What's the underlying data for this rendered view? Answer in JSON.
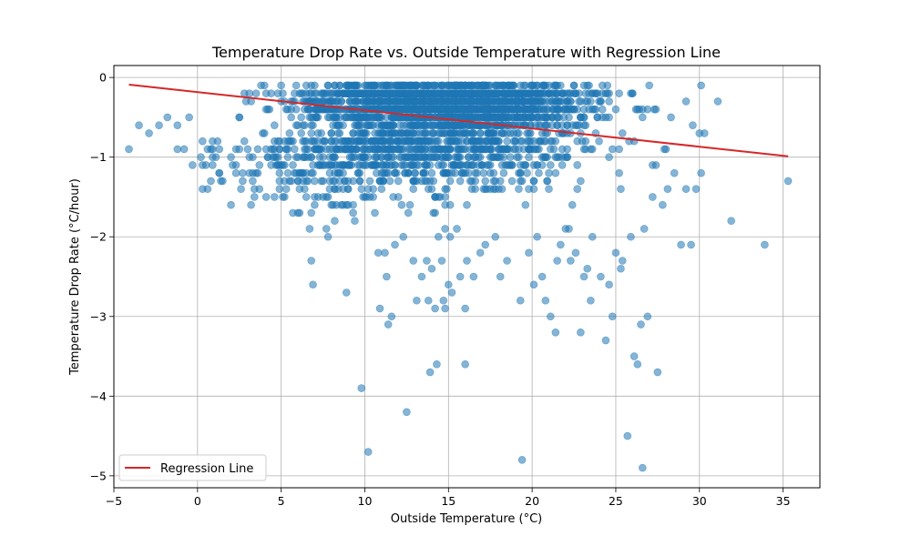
{
  "chart_data": {
    "type": "scatter",
    "title": "Temperature Drop Rate vs. Outside Temperature with Regression Line",
    "xlabel": "Outside Temperature (°C)",
    "ylabel": "Temperature Drop Rate (°C/hour)",
    "xlim": [
      -5.0,
      37.2
    ],
    "ylim": [
      -5.15,
      0.15
    ],
    "x_ticks": [
      -5,
      0,
      5,
      10,
      15,
      20,
      25,
      30,
      35
    ],
    "y_ticks": [
      0,
      -1,
      -2,
      -3,
      -4,
      -5
    ],
    "grid": true,
    "legend_position": "lower-left",
    "colors": {
      "points": "#1f77b4",
      "regression": "#d62728",
      "grid": "#b0b0b0"
    },
    "regression": {
      "name": "Regression Line",
      "x": [
        -4.1,
        35.3
      ],
      "y": [
        -0.09,
        -0.99
      ]
    },
    "series": [
      {
        "type": "scatter",
        "outliers": [
          [
            -4.1,
            -0.9
          ],
          [
            -3.5,
            -0.6
          ],
          [
            -2.9,
            -0.7
          ],
          [
            -2.3,
            -0.6
          ],
          [
            -1.8,
            -0.5
          ],
          [
            -1.2,
            -0.6
          ],
          [
            -0.8,
            -0.9
          ],
          [
            -0.5,
            -0.5
          ],
          [
            0.3,
            -1.1
          ],
          [
            0.5,
            -1.1
          ],
          [
            0.6,
            -1.4
          ],
          [
            0.9,
            -0.9
          ],
          [
            1.2,
            -0.8
          ],
          [
            2.0,
            -1.0
          ],
          [
            3.0,
            -0.9
          ],
          [
            3.1,
            -1.2
          ],
          [
            3.6,
            -1.2
          ],
          [
            3.7,
            -1.4
          ],
          [
            4.1,
            -1.5
          ],
          [
            4.6,
            -1.5
          ],
          [
            4.9,
            -1.2
          ],
          [
            5.1,
            -1.5
          ],
          [
            5.5,
            -1.3
          ],
          [
            5.7,
            -1.7
          ],
          [
            6.0,
            -1.7
          ],
          [
            6.4,
            -1.4
          ],
          [
            6.5,
            -1.5
          ],
          [
            6.7,
            -1.9
          ],
          [
            6.8,
            -2.3
          ],
          [
            7.0,
            -1.6
          ],
          [
            6.9,
            -2.6
          ],
          [
            7.7,
            -1.9
          ],
          [
            7.8,
            -2.0
          ],
          [
            7.5,
            -1.5
          ],
          [
            8.3,
            -1.6
          ],
          [
            8.7,
            -1.6
          ],
          [
            8.9,
            -2.7
          ],
          [
            9.0,
            -1.6
          ],
          [
            9.3,
            -1.7
          ],
          [
            9.4,
            -1.8
          ],
          [
            9.8,
            -3.9
          ],
          [
            10.2,
            -4.7
          ],
          [
            10.6,
            -1.7
          ],
          [
            10.8,
            -2.2
          ],
          [
            10.9,
            -2.9
          ],
          [
            11.2,
            -2.2
          ],
          [
            11.3,
            -2.5
          ],
          [
            11.4,
            -3.1
          ],
          [
            11.6,
            -3.0
          ],
          [
            11.8,
            -2.1
          ],
          [
            12.3,
            -2.0
          ],
          [
            12.5,
            -4.2
          ],
          [
            12.9,
            -2.3
          ],
          [
            13.1,
            -2.8
          ],
          [
            13.4,
            -2.5
          ],
          [
            13.7,
            -2.3
          ],
          [
            13.8,
            -2.8
          ],
          [
            13.9,
            -3.7
          ],
          [
            14.0,
            -2.4
          ],
          [
            14.2,
            -2.9
          ],
          [
            14.3,
            -3.6
          ],
          [
            14.4,
            -2.0
          ],
          [
            14.6,
            -2.3
          ],
          [
            14.7,
            -2.8
          ],
          [
            14.8,
            -2.9
          ],
          [
            15.0,
            -2.6
          ],
          [
            15.1,
            -2.0
          ],
          [
            15.2,
            -2.7
          ],
          [
            15.5,
            -1.9
          ],
          [
            15.7,
            -2.5
          ],
          [
            16.0,
            -3.6
          ],
          [
            16.0,
            -2.9
          ],
          [
            16.1,
            -2.3
          ],
          [
            16.5,
            -2.5
          ],
          [
            16.9,
            -2.2
          ],
          [
            17.2,
            -2.1
          ],
          [
            17.8,
            -2.0
          ],
          [
            18.1,
            -2.5
          ],
          [
            18.5,
            -2.3
          ],
          [
            19.3,
            -2.8
          ],
          [
            19.4,
            -4.8
          ],
          [
            19.8,
            -2.2
          ],
          [
            20.1,
            -2.6
          ],
          [
            20.3,
            -2.0
          ],
          [
            20.6,
            -2.5
          ],
          [
            20.8,
            -2.8
          ],
          [
            21.1,
            -3.0
          ],
          [
            21.4,
            -3.2
          ],
          [
            21.5,
            -2.3
          ],
          [
            21.7,
            -2.1
          ],
          [
            22.0,
            -1.9
          ],
          [
            22.3,
            -2.3
          ],
          [
            22.6,
            -2.2
          ],
          [
            22.9,
            -3.2
          ],
          [
            23.1,
            -2.5
          ],
          [
            23.3,
            -2.4
          ],
          [
            23.5,
            -2.8
          ],
          [
            23.6,
            -2.0
          ],
          [
            24.1,
            -2.5
          ],
          [
            24.4,
            -3.3
          ],
          [
            24.6,
            -2.6
          ],
          [
            24.8,
            -3.0
          ],
          [
            25.0,
            -2.2
          ],
          [
            25.3,
            -2.4
          ],
          [
            25.4,
            -2.3
          ],
          [
            25.7,
            -4.5
          ],
          [
            25.9,
            -2.0
          ],
          [
            26.1,
            -3.5
          ],
          [
            26.3,
            -3.6
          ],
          [
            26.6,
            -4.9
          ],
          [
            26.5,
            -3.1
          ],
          [
            26.7,
            -1.9
          ],
          [
            26.9,
            -3.0
          ],
          [
            27.2,
            -1.5
          ],
          [
            27.5,
            -3.7
          ],
          [
            27.8,
            -1.6
          ],
          [
            28.1,
            -1.4
          ],
          [
            28.5,
            -1.2
          ],
          [
            28.9,
            -2.1
          ],
          [
            29.2,
            -1.4
          ],
          [
            29.5,
            -2.1
          ],
          [
            29.8,
            -1.4
          ],
          [
            30.1,
            -1.2
          ],
          [
            31.9,
            -1.8
          ],
          [
            33.9,
            -2.1
          ],
          [
            35.3,
            -1.3
          ],
          [
            30.0,
            -0.7
          ],
          [
            30.3,
            -0.7
          ],
          [
            29.6,
            -0.6
          ],
          [
            30.1,
            -0.1
          ],
          [
            31.1,
            -0.3
          ],
          [
            29.2,
            -0.3
          ],
          [
            28.3,
            -0.5
          ],
          [
            27.9,
            -0.9
          ],
          [
            27.4,
            -1.1
          ]
        ]
      }
    ]
  }
}
